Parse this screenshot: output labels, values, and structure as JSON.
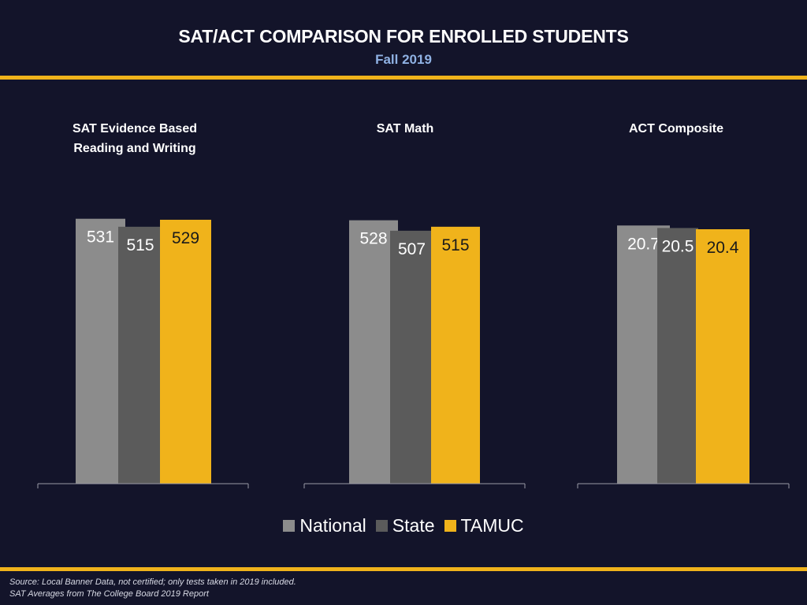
{
  "header": {
    "title": "SAT/ACT COMPARISON FOR ENROLLED STUDENTS",
    "subtitle": "Fall 2019"
  },
  "colors": {
    "background": "#13142a",
    "accent_rule": "#f0b31b",
    "subtitle": "#8fb1e3",
    "national": "#8c8c8c",
    "state": "#5b5b5b",
    "tamuc": "#f0b31b"
  },
  "chart_data": [
    {
      "type": "bar",
      "title_lines": [
        "SAT Evidence Based",
        "Reading and Writing"
      ],
      "categories": [
        "National",
        "State",
        "TAMUC"
      ],
      "values": [
        531,
        515,
        529
      ],
      "value_labels": [
        "531",
        "515",
        "529"
      ],
      "ylim": [
        0,
        600
      ]
    },
    {
      "type": "bar",
      "title_lines": [
        "SAT Math"
      ],
      "categories": [
        "National",
        "State",
        "TAMUC"
      ],
      "values": [
        528,
        507,
        515
      ],
      "value_labels": [
        "528",
        "507",
        "515"
      ],
      "ylim": [
        0,
        600
      ]
    },
    {
      "type": "bar",
      "title_lines": [
        "ACT Composite"
      ],
      "categories": [
        "National",
        "State",
        "TAMUC"
      ],
      "values": [
        20.7,
        20.5,
        20.4
      ],
      "value_labels": [
        "20.7",
        "20.5",
        "20.4"
      ],
      "ylim": [
        0,
        24
      ]
    }
  ],
  "legend": {
    "position": "bottom-center",
    "items": [
      {
        "label": "National",
        "color": "#8c8c8c"
      },
      {
        "label": "State",
        "color": "#5b5b5b"
      },
      {
        "label": "TAMUC",
        "color": "#f0b31b"
      }
    ]
  },
  "footnote": {
    "line1": "Source: Local Banner Data, not certified; only tests taken in 2019 included.",
    "line2": "SAT Averages from The College Board 2019 Report"
  }
}
